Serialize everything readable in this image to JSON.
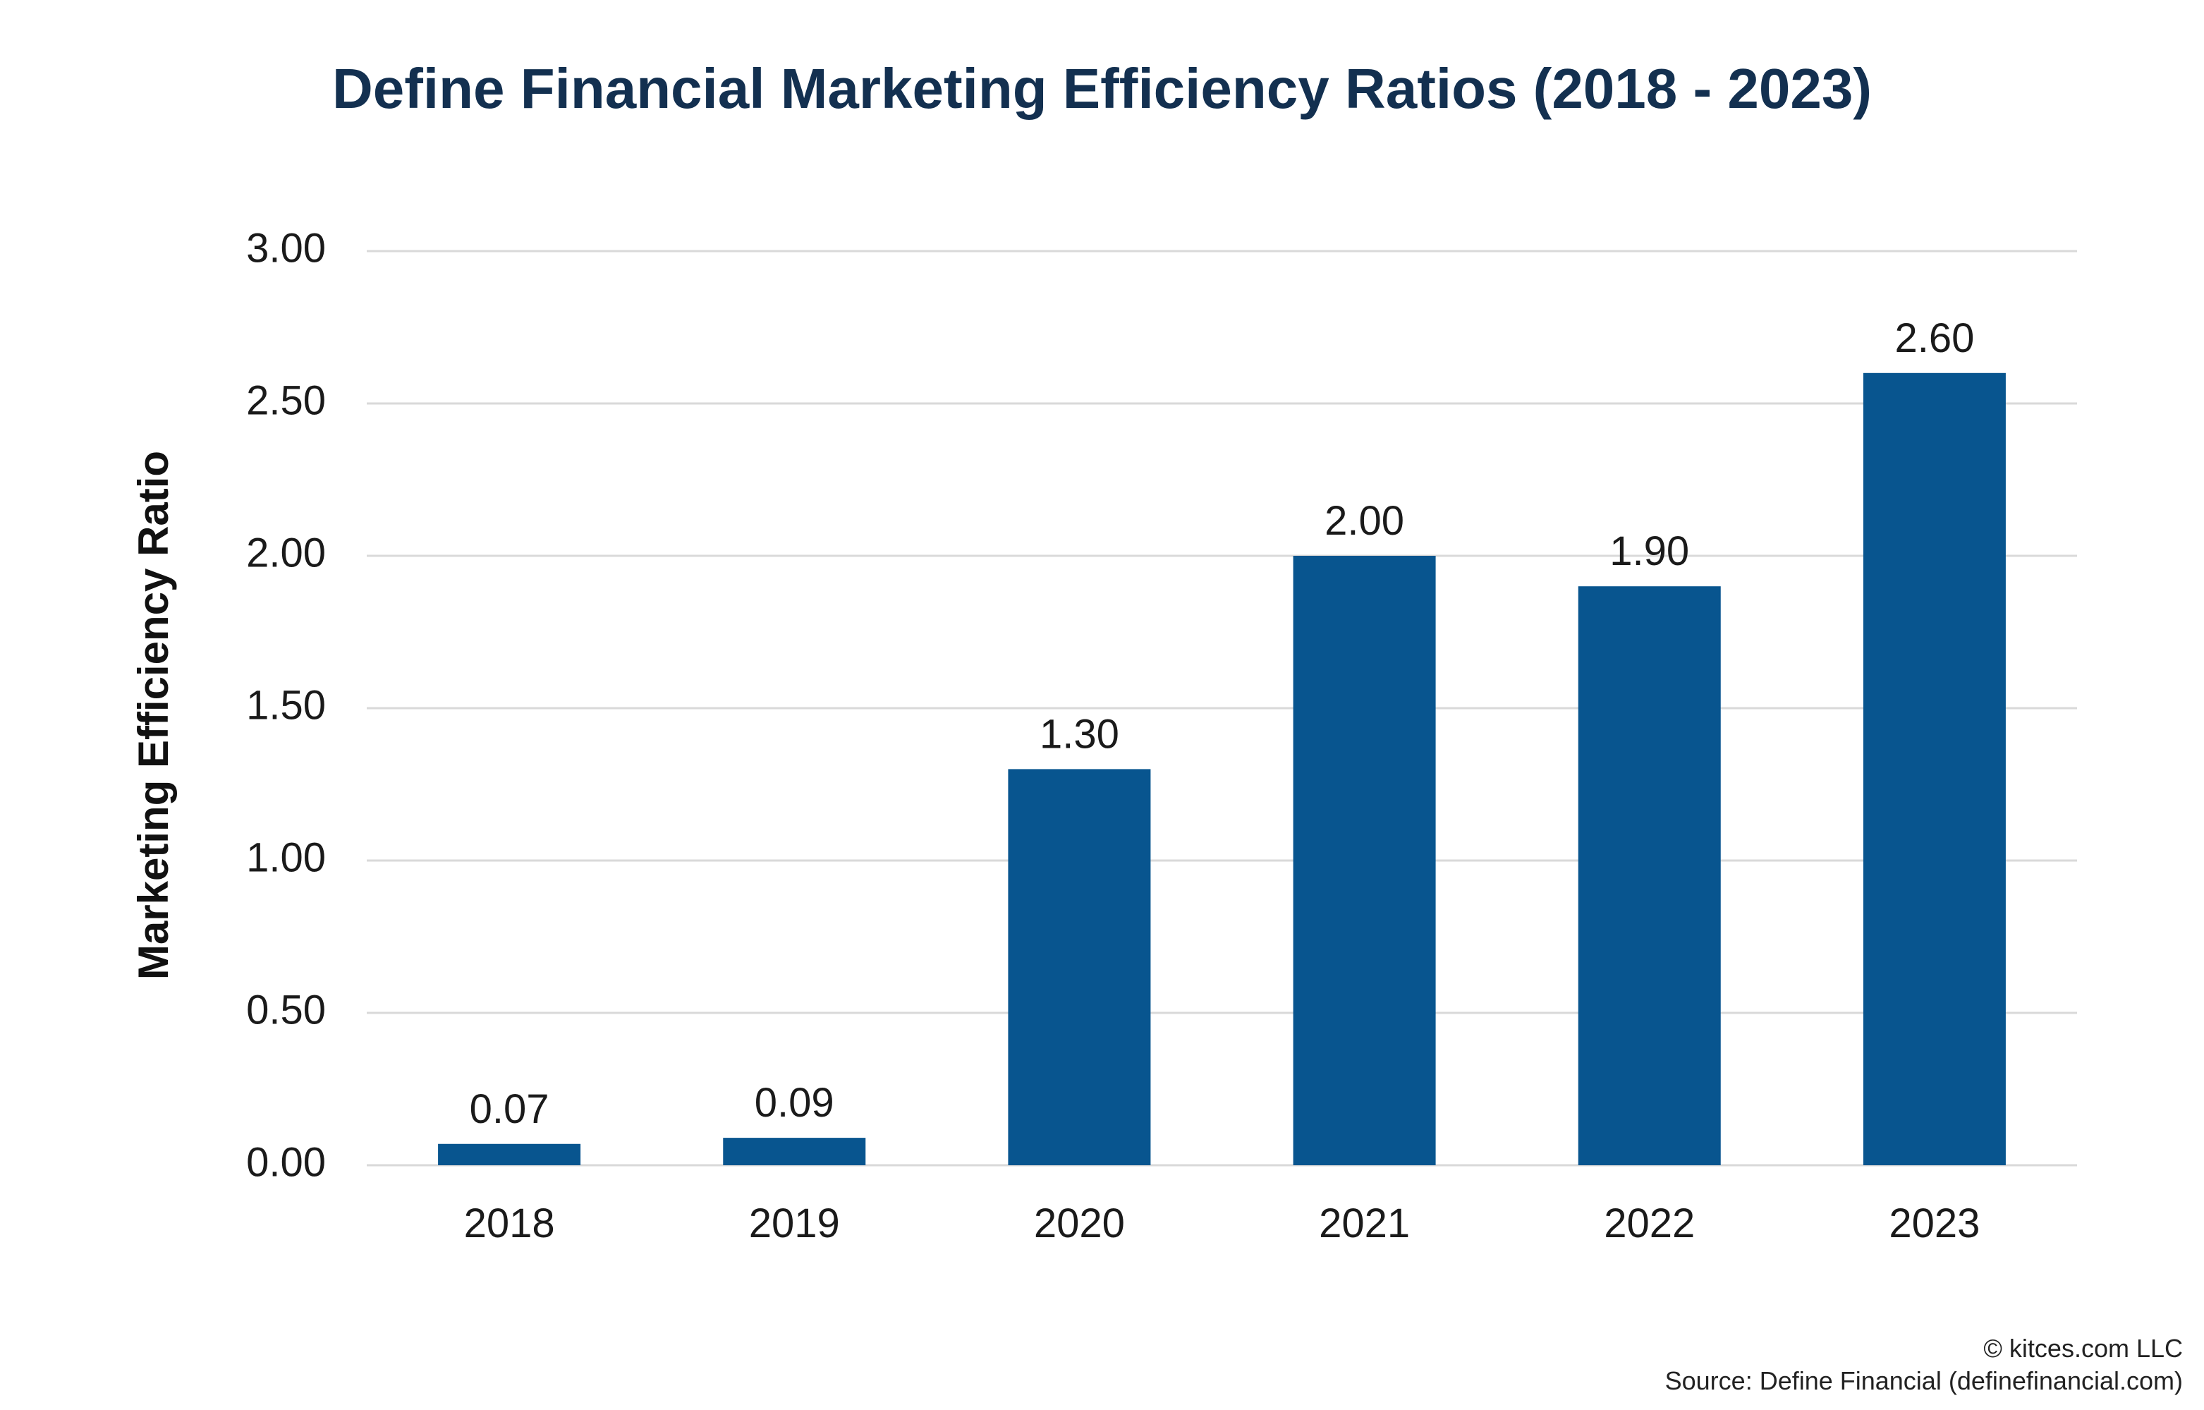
{
  "chart_data": {
    "type": "bar",
    "title": "Define Financial Marketing Efficiency Ratios (2018 - 2023)",
    "xlabel": "",
    "ylabel": "Marketing Efficiency Ratio",
    "categories": [
      "2018",
      "2019",
      "2020",
      "2021",
      "2022",
      "2023"
    ],
    "values": [
      0.07,
      0.09,
      1.3,
      2.0,
      1.9,
      2.6
    ],
    "value_labels": [
      "0.07",
      "0.09",
      "1.30",
      "2.00",
      "1.90",
      "2.60"
    ],
    "ylim": [
      0,
      3
    ],
    "yticks": [
      0,
      0.5,
      1,
      1.5,
      2,
      2.5,
      3
    ],
    "ytick_labels": [
      "0.00",
      "0.50",
      "1.00",
      "1.50",
      "2.00",
      "2.50",
      "3.00"
    ],
    "grid": true,
    "bar_color": "#08558F",
    "gridline_color": "#D9D9D9",
    "title_color": "#133050"
  },
  "footer": {
    "copyright": "© kitces.com LLC",
    "source": "Source: Define Financial (definefinancial.com)"
  }
}
